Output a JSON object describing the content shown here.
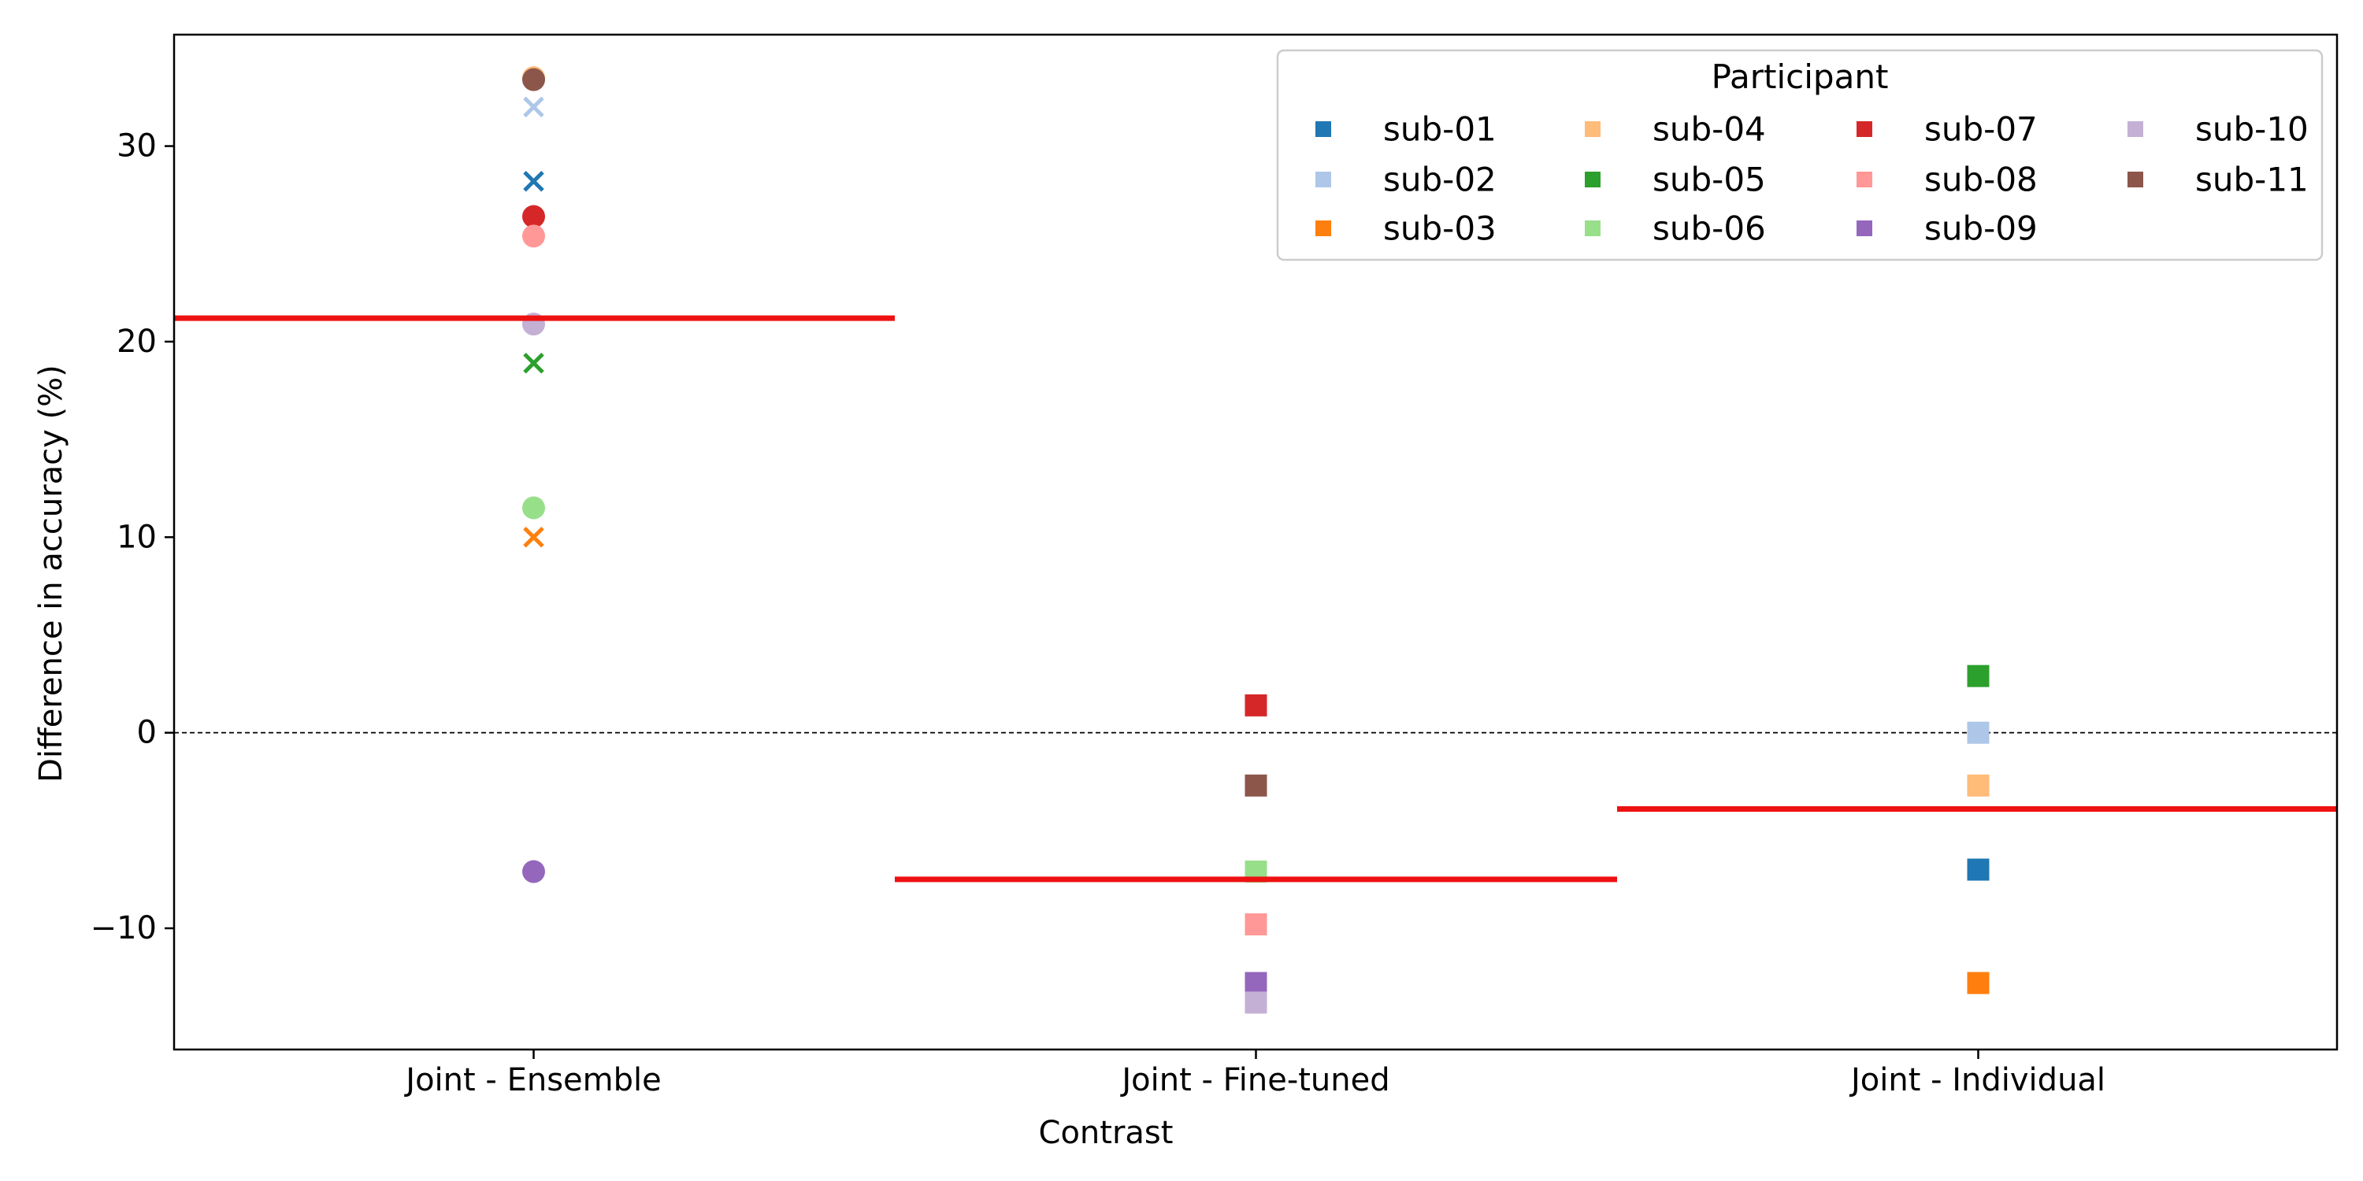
{
  "chart_data": {
    "type": "scatter",
    "xlabel": "Contrast",
    "ylabel": "Difference in accuracy (%)",
    "categories": [
      "Joint - Ensemble",
      "Joint - Fine-tuned",
      "Joint - Individual"
    ],
    "ylim": [
      -16.2,
      35.7
    ],
    "yticks": [
      -10,
      0,
      10,
      20,
      30
    ],
    "ytick_labels": [
      "−10",
      "0",
      "10",
      "20",
      "30"
    ],
    "reference_line": 0,
    "legend": {
      "title": "Participant",
      "placement": "top-right",
      "columns": 4
    },
    "participants": [
      {
        "name": "sub-01",
        "color": "#1f77b4"
      },
      {
        "name": "sub-02",
        "color": "#aec7e8"
      },
      {
        "name": "sub-03",
        "color": "#ff7f0e"
      },
      {
        "name": "sub-04",
        "color": "#ffbb78"
      },
      {
        "name": "sub-05",
        "color": "#2ca02c"
      },
      {
        "name": "sub-06",
        "color": "#98df8a"
      },
      {
        "name": "sub-07",
        "color": "#d62728"
      },
      {
        "name": "sub-08",
        "color": "#ff9896"
      },
      {
        "name": "sub-09",
        "color": "#9467bd"
      },
      {
        "name": "sub-10",
        "color": "#c5b0d5"
      },
      {
        "name": "sub-11",
        "color": "#8c564b"
      }
    ],
    "means": [
      21.2,
      -7.5,
      -3.9
    ],
    "mean_color": "#ee1111",
    "points": [
      {
        "category": "Joint - Ensemble",
        "participant": "sub-01",
        "marker": "x",
        "value": 28.2
      },
      {
        "category": "Joint - Ensemble",
        "participant": "sub-02",
        "marker": "x",
        "value": 32.0
      },
      {
        "category": "Joint - Ensemble",
        "participant": "sub-03",
        "marker": "x",
        "value": 10.0
      },
      {
        "category": "Joint - Ensemble",
        "participant": "sub-04",
        "marker": "circle",
        "value": 33.5
      },
      {
        "category": "Joint - Ensemble",
        "participant": "sub-05",
        "marker": "x",
        "value": 18.9
      },
      {
        "category": "Joint - Ensemble",
        "participant": "sub-06",
        "marker": "circle",
        "value": 11.5
      },
      {
        "category": "Joint - Ensemble",
        "participant": "sub-07",
        "marker": "circle",
        "value": 26.4
      },
      {
        "category": "Joint - Ensemble",
        "participant": "sub-08",
        "marker": "circle",
        "value": 25.4
      },
      {
        "category": "Joint - Ensemble",
        "participant": "sub-09",
        "marker": "circle",
        "value": -7.1
      },
      {
        "category": "Joint - Ensemble",
        "participant": "sub-10",
        "marker": "circle",
        "value": 20.9
      },
      {
        "category": "Joint - Ensemble",
        "participant": "sub-11",
        "marker": "circle",
        "value": 33.4
      },
      {
        "category": "Joint - Fine-tuned",
        "participant": "sub-07",
        "marker": "square",
        "value": 1.4
      },
      {
        "category": "Joint - Fine-tuned",
        "participant": "sub-11",
        "marker": "square",
        "value": -2.7
      },
      {
        "category": "Joint - Fine-tuned",
        "participant": "sub-06",
        "marker": "square",
        "value": -7.1
      },
      {
        "category": "Joint - Fine-tuned",
        "participant": "sub-08",
        "marker": "square",
        "value": -9.8
      },
      {
        "category": "Joint - Fine-tuned",
        "participant": "sub-09",
        "marker": "square",
        "value": -12.8
      },
      {
        "category": "Joint - Fine-tuned",
        "participant": "sub-10",
        "marker": "square",
        "value": -13.8
      },
      {
        "category": "Joint - Individual",
        "participant": "sub-05",
        "marker": "square",
        "value": 2.9
      },
      {
        "category": "Joint - Individual",
        "participant": "sub-02",
        "marker": "square",
        "value": 0.0
      },
      {
        "category": "Joint - Individual",
        "participant": "sub-04",
        "marker": "square",
        "value": -2.7
      },
      {
        "category": "Joint - Individual",
        "participant": "sub-01",
        "marker": "square",
        "value": -7.0
      },
      {
        "category": "Joint - Individual",
        "participant": "sub-03",
        "marker": "square",
        "value": -12.8
      }
    ]
  }
}
